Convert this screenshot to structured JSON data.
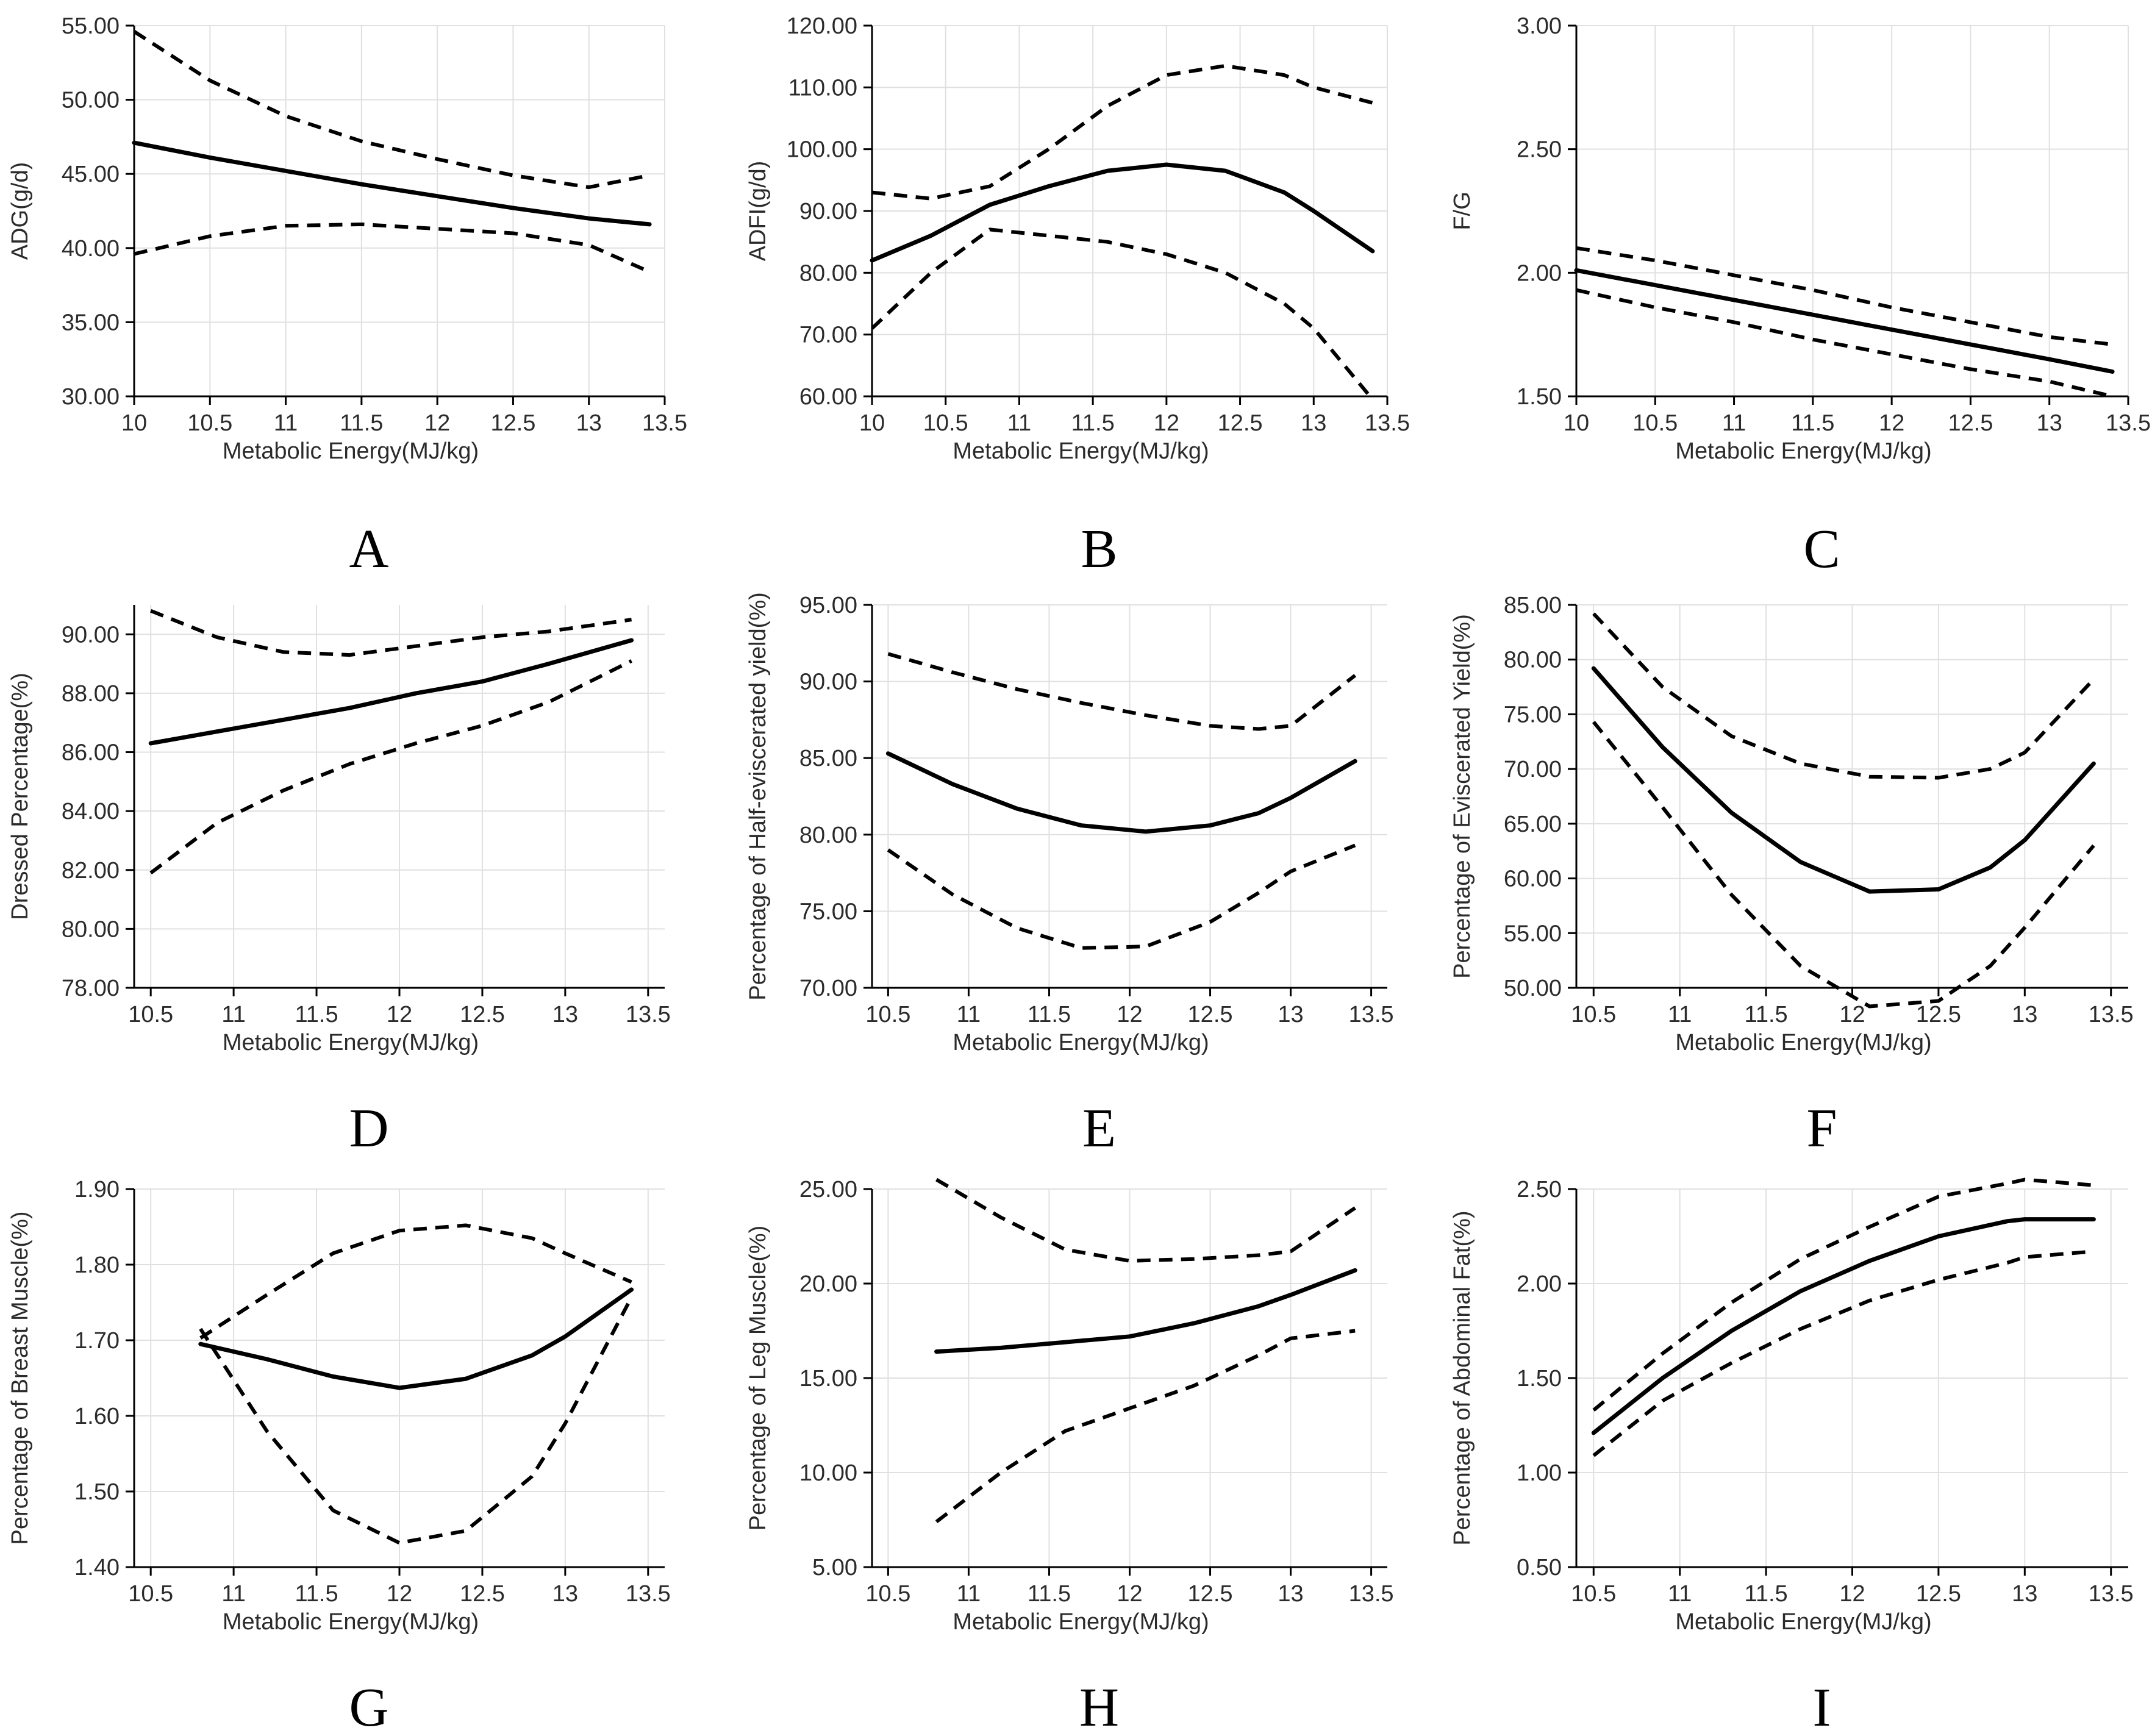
{
  "chart_data": [
    {
      "panel": "A",
      "type": "line",
      "xlabel": "Metabolic Energy(MJ/kg)",
      "ylabel": "ADG(g/d)",
      "xlim": [
        10,
        13.5
      ],
      "ylim": [
        30,
        55
      ],
      "xticks": [
        10,
        10.5,
        11,
        11.5,
        12,
        12.5,
        13,
        13.5
      ],
      "xtick_labels": [
        "10",
        "10.5",
        "11",
        "11.5",
        "12",
        "12.5",
        "13",
        "13.5"
      ],
      "yticks": [
        30,
        35,
        40,
        45,
        50,
        55
      ],
      "ytick_labels": [
        "30.00",
        "35.00",
        "40.00",
        "45.00",
        "50.00",
        "55.00"
      ],
      "x": [
        10,
        10.5,
        11,
        11.5,
        12,
        12.5,
        13,
        13.4
      ],
      "series": [
        {
          "name": "fit",
          "style": "solid",
          "values": [
            47.1,
            46.1,
            45.2,
            44.3,
            43.5,
            42.7,
            42.0,
            41.6
          ]
        },
        {
          "name": "upper",
          "style": "dashed",
          "values": [
            54.6,
            51.3,
            48.9,
            47.2,
            46.0,
            44.9,
            44.1,
            44.9
          ]
        },
        {
          "name": "lower",
          "style": "dashed",
          "values": [
            39.6,
            40.8,
            41.5,
            41.6,
            41.3,
            41.0,
            40.2,
            38.4
          ]
        }
      ]
    },
    {
      "panel": "B",
      "type": "line",
      "xlabel": "Metabolic Energy(MJ/kg)",
      "ylabel": "ADFI(g/d)",
      "xlim": [
        10,
        13.5
      ],
      "ylim": [
        60,
        120
      ],
      "xticks": [
        10,
        10.5,
        11,
        11.5,
        12,
        12.5,
        13,
        13.5
      ],
      "xtick_labels": [
        "10",
        "10.5",
        "11",
        "11.5",
        "12",
        "12.5",
        "13",
        "13.5"
      ],
      "yticks": [
        60,
        70,
        80,
        90,
        100,
        110,
        120
      ],
      "ytick_labels": [
        "60.00",
        "70.00",
        "80.00",
        "90.00",
        "100.00",
        "110.00",
        "120.00"
      ],
      "x": [
        10,
        10.4,
        10.8,
        11.2,
        11.6,
        12.0,
        12.4,
        12.8,
        13.0,
        13.4
      ],
      "series": [
        {
          "name": "fit",
          "style": "solid",
          "values": [
            82,
            86,
            91,
            94,
            96.5,
            97.5,
            96.5,
            93,
            90,
            83.5
          ]
        },
        {
          "name": "upper",
          "style": "dashed",
          "values": [
            93,
            92,
            94,
            100,
            107,
            112,
            113.5,
            112,
            110,
            107.5
          ]
        },
        {
          "name": "lower",
          "style": "dashed",
          "values": [
            71,
            80,
            87,
            86,
            85,
            83,
            80,
            75,
            71,
            59.5
          ]
        }
      ]
    },
    {
      "panel": "C",
      "type": "line",
      "xlabel": "Metabolic Energy(MJ/kg)",
      "ylabel": "F/G",
      "xlim": [
        10,
        13.5
      ],
      "ylim": [
        1.5,
        3.0
      ],
      "xticks": [
        10,
        10.5,
        11,
        11.5,
        12,
        12.5,
        13,
        13.5
      ],
      "xtick_labels": [
        "10",
        "10.5",
        "11",
        "11.5",
        "12",
        "12.5",
        "13",
        "13.5"
      ],
      "yticks": [
        1.5,
        2.0,
        2.5,
        3.0
      ],
      "ytick_labels": [
        "1.50",
        "2.00",
        "2.50",
        "3.00"
      ],
      "x": [
        10,
        10.5,
        11,
        11.5,
        12,
        12.5,
        13,
        13.4
      ],
      "series": [
        {
          "name": "fit",
          "style": "solid",
          "values": [
            2.01,
            1.95,
            1.89,
            1.83,
            1.77,
            1.71,
            1.65,
            1.6
          ]
        },
        {
          "name": "upper",
          "style": "dashed",
          "values": [
            2.1,
            2.05,
            1.99,
            1.93,
            1.86,
            1.8,
            1.74,
            1.71
          ]
        },
        {
          "name": "lower",
          "style": "dashed",
          "values": [
            1.93,
            1.86,
            1.8,
            1.73,
            1.67,
            1.61,
            1.56,
            1.5
          ]
        }
      ]
    },
    {
      "panel": "D",
      "type": "line",
      "xlabel": "Metabolic Energy(MJ/kg)",
      "ylabel": "Dressed Percentage(%)",
      "xlim": [
        10.4,
        13.6
      ],
      "ylim": [
        78,
        91
      ],
      "xticks": [
        10.5,
        11,
        11.5,
        12,
        12.5,
        13,
        13.5
      ],
      "xtick_labels": [
        "10.5",
        "11",
        "11.5",
        "12",
        "12.5",
        "13",
        "13.5"
      ],
      "yticks": [
        78,
        80,
        82,
        84,
        86,
        88,
        90
      ],
      "ytick_labels": [
        "78.00",
        "80.00",
        "82.00",
        "84.00",
        "86.00",
        "88.00",
        "90.00"
      ],
      "x": [
        10.5,
        10.9,
        11.3,
        11.7,
        12.1,
        12.5,
        12.9,
        13.4
      ],
      "series": [
        {
          "name": "fit",
          "style": "solid",
          "values": [
            86.3,
            86.7,
            87.1,
            87.5,
            88.0,
            88.4,
            89.0,
            89.8
          ]
        },
        {
          "name": "upper",
          "style": "dashed",
          "values": [
            90.8,
            89.9,
            89.4,
            89.3,
            89.6,
            89.9,
            90.1,
            90.5
          ]
        },
        {
          "name": "lower",
          "style": "dashed",
          "values": [
            81.9,
            83.6,
            84.7,
            85.6,
            86.3,
            86.9,
            87.7,
            89.1
          ]
        }
      ]
    },
    {
      "panel": "E",
      "type": "line",
      "xlabel": "Metabolic Energy(MJ/kg)",
      "ylabel": "Percentage of Half-eviscerated yield(%)",
      "xlim": [
        10.4,
        13.6
      ],
      "ylim": [
        70,
        95
      ],
      "xticks": [
        10.5,
        11,
        11.5,
        12,
        12.5,
        13,
        13.5
      ],
      "xtick_labels": [
        "10.5",
        "11",
        "11.5",
        "12",
        "12.5",
        "13",
        "13.5"
      ],
      "yticks": [
        70,
        75,
        80,
        85,
        90,
        95
      ],
      "ytick_labels": [
        "70.00",
        "75.00",
        "80.00",
        "85.00",
        "90.00",
        "95.00"
      ],
      "x": [
        10.5,
        10.9,
        11.3,
        11.7,
        12.1,
        12.5,
        12.8,
        13.0,
        13.4
      ],
      "series": [
        {
          "name": "fit",
          "style": "solid",
          "values": [
            85.3,
            83.3,
            81.7,
            80.6,
            80.2,
            80.6,
            81.4,
            82.4,
            84.8
          ]
        },
        {
          "name": "upper",
          "style": "dashed",
          "values": [
            91.8,
            90.6,
            89.5,
            88.6,
            87.8,
            87.1,
            86.9,
            87.1,
            90.4
          ]
        },
        {
          "name": "lower",
          "style": "dashed",
          "values": [
            79.0,
            76.1,
            73.9,
            72.6,
            72.7,
            74.3,
            76.2,
            77.6,
            79.3
          ]
        }
      ]
    },
    {
      "panel": "F",
      "type": "line",
      "xlabel": "Metabolic Energy(MJ/kg)",
      "ylabel": "Percentage of Eviscerated Yield(%)",
      "xlim": [
        10.4,
        13.6
      ],
      "ylim": [
        50,
        85
      ],
      "xticks": [
        10.5,
        11,
        11.5,
        12,
        12.5,
        13,
        13.5
      ],
      "xtick_labels": [
        "10.5",
        "11",
        "11.5",
        "12",
        "12.5",
        "13",
        "13.5"
      ],
      "yticks": [
        50,
        55,
        60,
        65,
        70,
        75,
        80,
        85
      ],
      "ytick_labels": [
        "50.00",
        "55.00",
        "60.00",
        "65.00",
        "70.00",
        "75.00",
        "80.00",
        "85.00"
      ],
      "x": [
        10.5,
        10.9,
        11.3,
        11.7,
        12.1,
        12.5,
        12.8,
        13.0,
        13.4
      ],
      "series": [
        {
          "name": "fit",
          "style": "solid",
          "values": [
            79.2,
            72.0,
            66.0,
            61.5,
            58.8,
            59.0,
            61.0,
            63.5,
            70.5
          ]
        },
        {
          "name": "upper",
          "style": "dashed",
          "values": [
            84.2,
            77.5,
            73.0,
            70.5,
            69.3,
            69.2,
            70.0,
            71.5,
            78.2
          ]
        },
        {
          "name": "lower",
          "style": "dashed",
          "values": [
            74.3,
            66.5,
            58.5,
            52.0,
            48.3,
            48.8,
            52.0,
            55.5,
            63.0
          ]
        }
      ]
    },
    {
      "panel": "G",
      "type": "line",
      "xlabel": "Metabolic Energy(MJ/kg)",
      "ylabel": "Percentage of Breast Muscle(%)",
      "xlim": [
        10.4,
        13.6
      ],
      "ylim": [
        1.4,
        1.9
      ],
      "xticks": [
        10.5,
        11,
        11.5,
        12,
        12.5,
        13,
        13.5
      ],
      "xtick_labels": [
        "10.5",
        "11",
        "11.5",
        "12",
        "12.5",
        "13",
        "13.5"
      ],
      "yticks": [
        1.4,
        1.5,
        1.6,
        1.7,
        1.8,
        1.9
      ],
      "ytick_labels": [
        "1.40",
        "1.50",
        "1.60",
        "1.70",
        "1.80",
        "1.90"
      ],
      "x": [
        10.8,
        11.2,
        11.6,
        12.0,
        12.4,
        12.8,
        13.0,
        13.4
      ],
      "series": [
        {
          "name": "fit",
          "style": "solid",
          "values": [
            1.695,
            1.675,
            1.652,
            1.637,
            1.649,
            1.68,
            1.705,
            1.767
          ]
        },
        {
          "name": "upper",
          "style": "dashed",
          "values": [
            1.703,
            1.76,
            1.815,
            1.845,
            1.852,
            1.835,
            1.815,
            1.777
          ]
        },
        {
          "name": "lower",
          "style": "dashed",
          "values": [
            1.715,
            1.58,
            1.475,
            1.432,
            1.448,
            1.52,
            1.59,
            1.757
          ]
        }
      ]
    },
    {
      "panel": "H",
      "type": "line",
      "xlabel": "Metabolic Energy(MJ/kg)",
      "ylabel": "Percentage of Leg Muscle(%)",
      "xlim": [
        10.4,
        13.6
      ],
      "ylim": [
        5,
        25
      ],
      "xticks": [
        10.5,
        11,
        11.5,
        12,
        12.5,
        13,
        13.5
      ],
      "xtick_labels": [
        "10.5",
        "11",
        "11.5",
        "12",
        "12.5",
        "13",
        "13.5"
      ],
      "yticks": [
        5,
        10,
        15,
        20,
        25
      ],
      "ytick_labels": [
        "5.00",
        "10.00",
        "15.00",
        "20.00",
        "25.00"
      ],
      "x": [
        10.8,
        11.2,
        11.6,
        12.0,
        12.4,
        12.8,
        13.0,
        13.4
      ],
      "series": [
        {
          "name": "fit",
          "style": "solid",
          "values": [
            16.4,
            16.6,
            16.9,
            17.2,
            17.9,
            18.8,
            19.4,
            20.7
          ]
        },
        {
          "name": "upper",
          "style": "dashed",
          "values": [
            25.5,
            23.5,
            21.8,
            21.2,
            21.3,
            21.5,
            21.7,
            24.0
          ]
        },
        {
          "name": "lower",
          "style": "dashed",
          "values": [
            7.4,
            10.0,
            12.2,
            13.4,
            14.6,
            16.2,
            17.1,
            17.5
          ]
        }
      ]
    },
    {
      "panel": "I",
      "type": "line",
      "xlabel": "Metabolic Energy(MJ/kg)",
      "ylabel": "Percentage of Abdominal Fat(%)",
      "xlim": [
        10.4,
        13.6
      ],
      "ylim": [
        0.5,
        2.5
      ],
      "xticks": [
        10.5,
        11,
        11.5,
        12,
        12.5,
        13,
        13.5
      ],
      "xtick_labels": [
        "10.5",
        "11",
        "11.5",
        "12",
        "12.5",
        "13",
        "13.5"
      ],
      "yticks": [
        0.5,
        1.0,
        1.5,
        2.0,
        2.5
      ],
      "ytick_labels": [
        "0.50",
        "1.00",
        "1.50",
        "2.00",
        "2.50"
      ],
      "x": [
        10.5,
        10.9,
        11.3,
        11.7,
        12.1,
        12.5,
        12.9,
        13.0,
        13.4
      ],
      "series": [
        {
          "name": "fit",
          "style": "solid",
          "values": [
            1.21,
            1.5,
            1.75,
            1.96,
            2.12,
            2.25,
            2.33,
            2.34,
            2.34
          ]
        },
        {
          "name": "upper",
          "style": "dashed",
          "values": [
            1.33,
            1.63,
            1.9,
            2.13,
            2.3,
            2.46,
            2.53,
            2.55,
            2.52
          ]
        },
        {
          "name": "lower",
          "style": "dashed",
          "values": [
            1.09,
            1.38,
            1.58,
            1.76,
            1.91,
            2.02,
            2.11,
            2.14,
            2.17
          ]
        }
      ]
    }
  ]
}
